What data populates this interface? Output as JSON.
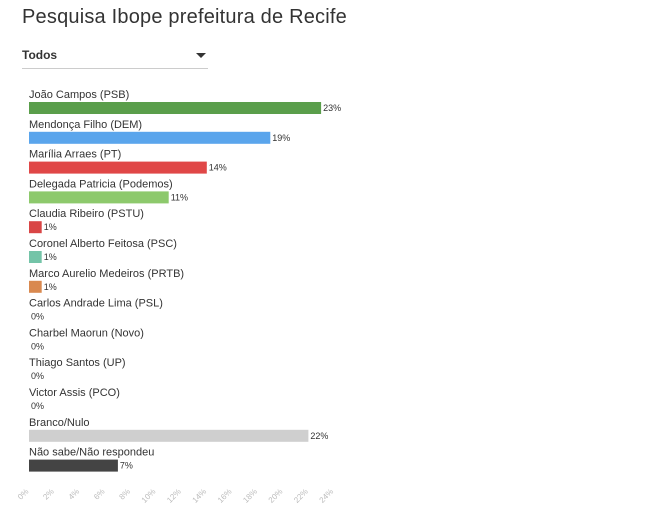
{
  "filter": {
    "selected": "Todos"
  },
  "chart_data": {
    "type": "bar",
    "orientation": "horizontal",
    "title": "Pesquisa Ibope prefeitura de Recife",
    "categories": [
      "João Campos (PSB)",
      "Mendonça Filho (DEM)",
      "Marília Arraes (PT)",
      "Delegada Patricia (Podemos)",
      "Claudia Ribeiro (PSTU)",
      "Coronel Alberto Feitosa (PSC)",
      "Marco Aurelio Medeiros (PRTB)",
      "Carlos Andrade Lima (PSL)",
      "Charbel Maorun (Novo)",
      "Thiago Santos (UP)",
      "Victor Assis (PCO)",
      "Branco/Nulo",
      "Não sabe/Não respondeu"
    ],
    "values": [
      23,
      19,
      14,
      11,
      1,
      1,
      1,
      0,
      0,
      0,
      0,
      22,
      7
    ],
    "value_labels": [
      "23%",
      "19%",
      "14%",
      "11%",
      "1%",
      "1%",
      "1%",
      "0%",
      "0%",
      "0%",
      "0%",
      "22%",
      "7%"
    ],
    "colors": [
      "#5a9e4b",
      "#5aa5ec",
      "#e04747",
      "#8dc96c",
      "#d94545",
      "#74c4a8",
      "#d9894f",
      "#cccccc",
      "#cccccc",
      "#cccccc",
      "#cccccc",
      "#cfcfcf",
      "#444444"
    ],
    "xlim": [
      0,
      24
    ],
    "xticks": [
      "0%",
      "2%",
      "4%",
      "6%",
      "8%",
      "10%",
      "12%",
      "14%",
      "16%",
      "18%",
      "20%",
      "22%",
      "24%"
    ],
    "grid": false,
    "legend": "none"
  }
}
